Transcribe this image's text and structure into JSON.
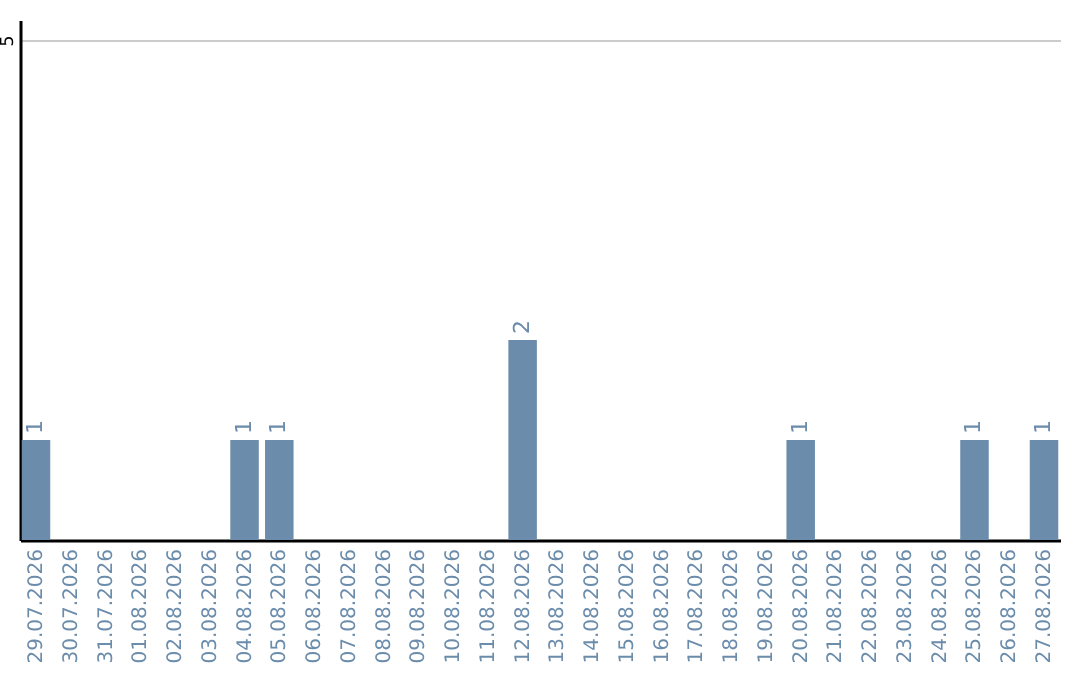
{
  "chart_data": {
    "type": "bar",
    "categories": [
      "29.07.2026",
      "30.07.2026",
      "31.07.2026",
      "01.08.2026",
      "02.08.2026",
      "03.08.2026",
      "04.08.2026",
      "05.08.2026",
      "06.08.2026",
      "07.08.2026",
      "08.08.2026",
      "09.08.2026",
      "10.08.2026",
      "11.08.2026",
      "12.08.2026",
      "13.08.2026",
      "14.08.2026",
      "15.08.2026",
      "16.08.2026",
      "17.08.2026",
      "18.08.2026",
      "19.08.2026",
      "20.08.2026",
      "21.08.2026",
      "22.08.2026",
      "23.08.2026",
      "24.08.2026",
      "25.08.2026",
      "26.08.2026",
      "27.08.2026"
    ],
    "values": [
      1,
      0,
      0,
      0,
      0,
      0,
      1,
      1,
      0,
      0,
      0,
      0,
      0,
      0,
      2,
      0,
      0,
      0,
      0,
      0,
      0,
      0,
      1,
      0,
      0,
      0,
      0,
      1,
      0,
      1
    ],
    "value_labels": [
      "1",
      null,
      null,
      null,
      null,
      null,
      "1",
      "1",
      null,
      null,
      null,
      null,
      null,
      null,
      "2",
      null,
      null,
      null,
      null,
      null,
      null,
      null,
      "1",
      null,
      null,
      null,
      null,
      "1",
      null,
      "1"
    ],
    "color": "#6b8cab",
    "ylim": [
      0,
      5.2
    ],
    "yticks": [
      5
    ],
    "grid": "y"
  }
}
